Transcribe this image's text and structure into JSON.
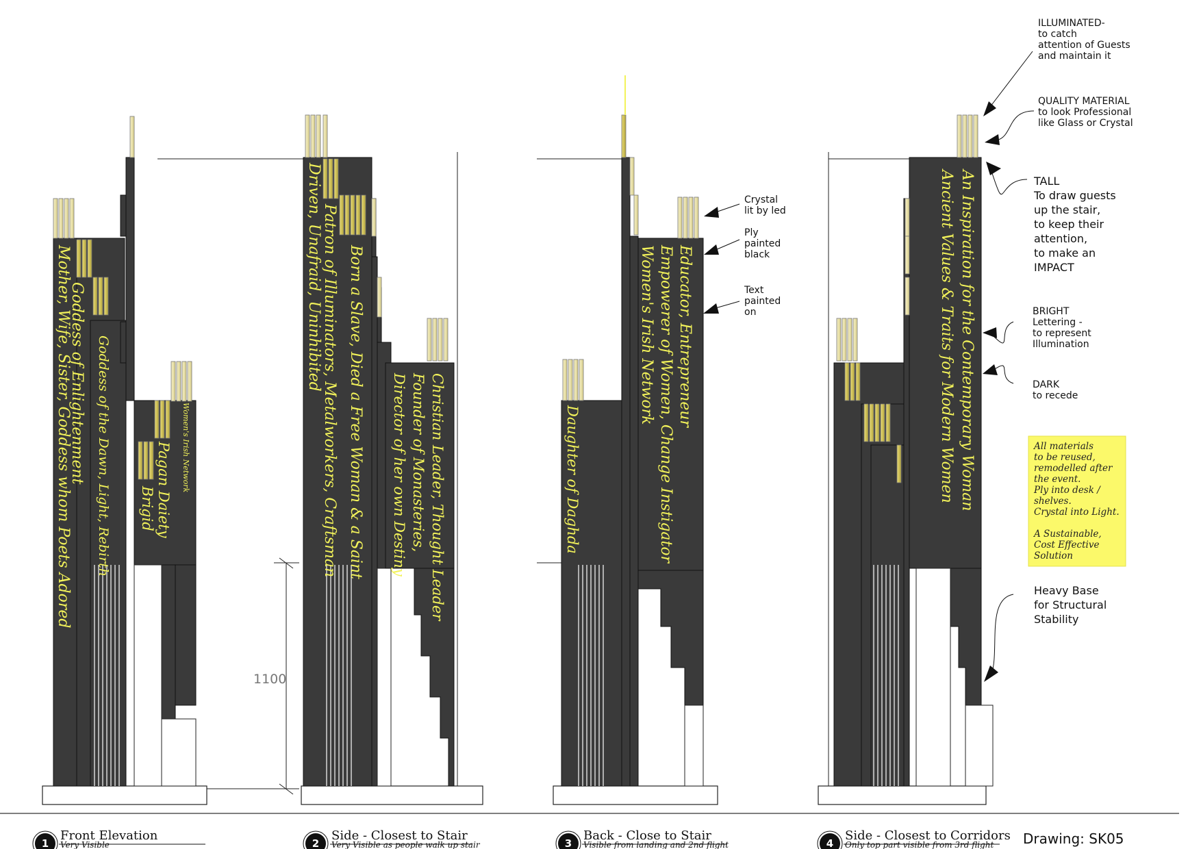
{
  "drawing": {
    "label": "Drawing: SK05"
  },
  "dimension": {
    "value": "1100"
  },
  "views": [
    {
      "number": "1",
      "title": "Front Elevation",
      "subtitle": "Very Visible"
    },
    {
      "number": "2",
      "title": "Side - Closest to Stair",
      "subtitle": "Very Visible as people walk up stair"
    },
    {
      "number": "3",
      "title": "Back - Close to Stair",
      "subtitle": "Visible from landing and 2nd flight"
    },
    {
      "number": "4",
      "title": "Side - Closest to Corridors",
      "subtitle": "Only top part visible from 3rd flight"
    }
  ],
  "lettering": {
    "front": {
      "mother": "Mother, Wife, Sister, Goddess whom Poets Adored",
      "enlightenment": "Goddess of Enlightenment",
      "dawn": "Goddess of the Dawn, Light, Rebirth",
      "pagan": "Pagan Daiety",
      "brigid": "Brigid",
      "network": "Women's Irish Network"
    },
    "side_stair": {
      "driven": "Driven, Unafraid, Uninhibited",
      "patron": "Patron of Illuminators, Metalworkers, Craftsman",
      "slave": "Born a Slave, Died a Free Woman & a Saint",
      "christian": "Christian Leader, Thought Leader",
      "founder": "Founder of Monasteries,",
      "director": "Director of her own Destiny"
    },
    "back": {
      "daughter": "Daughter of Daghda",
      "educator": "Educator, Entrepreneur",
      "empowerer": "Empowerer of Women, Change Instigator",
      "network": "Women's Irish Network"
    },
    "side_corridor": {
      "inspiration": "An Inspiration for the Contemporary Woman",
      "ancient": "Ancient Values & Traits for Modern Women"
    }
  },
  "annotations": {
    "illuminated": [
      "ILLUMINATED-",
      "to catch",
      "attention of Guests",
      "and maintain it"
    ],
    "quality": [
      "QUALITY MATERIAL",
      "to look Professional",
      "like Glass or Crystal"
    ],
    "crystal": [
      "Crystal",
      "lit by led"
    ],
    "ply": [
      "Ply",
      "painted",
      "black"
    ],
    "text_painted": [
      "Text",
      "painted",
      "on"
    ],
    "tall": [
      "TALL",
      "To draw guests",
      "up the stair,",
      "to keep their",
      "attention,",
      "to make an",
      "IMPACT"
    ],
    "bright": [
      "BRIGHT",
      "Lettering -",
      "to represent",
      "Illumination"
    ],
    "dark": [
      "DARK",
      "to recede"
    ],
    "heavy": [
      "Heavy Base",
      "for Structural",
      "Stability"
    ]
  },
  "sticky_note": {
    "lines": [
      "All materials",
      "to be reused,",
      "remodelled after",
      "the event.",
      "Ply into desk /",
      "shelves.",
      "Crystal into Light.",
      "",
      "A Sustainable,",
      "Cost Effective",
      "Solution"
    ]
  },
  "colors": {
    "ply_black": "#3a3a3a",
    "lettering": "#f2f25a",
    "crystal": "#e9e2b0",
    "crystal_gold": "#d8cc66",
    "sticky": "#fbf96a"
  }
}
